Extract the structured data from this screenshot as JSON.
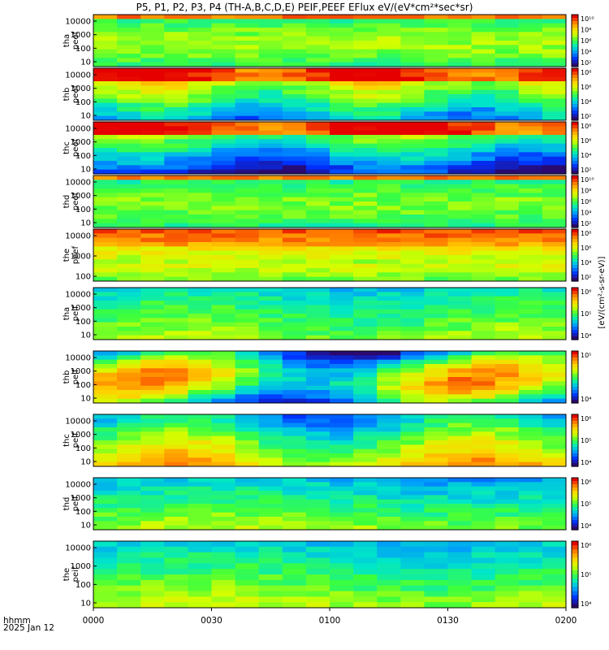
{
  "title": "P5, P1, P2, P3, P4 (TH-A,B,C,D,E) PEIF,PEEF EFlux eV/(eV*cm²*sec*sr)",
  "footer": {
    "line1": "hhmm",
    "line2": "2025 Jan 12"
  },
  "colorbar_units_label": "[eV/(cm²-s-sr-eV)]",
  "chart_data": {
    "type": "heatmap",
    "x_ticks": [
      "0000",
      "0030",
      "0100",
      "0130",
      "0200"
    ],
    "x_range_minutes": [
      0,
      120
    ],
    "panels": [
      {
        "probe": "tha",
        "product": "peef",
        "ylabel": [
          "tha",
          "peef"
        ],
        "yscale": "log",
        "ytick_labels": [
          "10",
          "100",
          "1000",
          "10000"
        ],
        "colorbar_ticks": [
          "10²",
          "10⁴",
          "10⁶",
          "10⁸",
          "10¹⁰"
        ]
      },
      {
        "probe": "thb",
        "product": "peef",
        "ylabel": [
          "thb",
          "peef"
        ],
        "yscale": "log",
        "ytick_labels": [
          "10",
          "100",
          "1000",
          "10000"
        ],
        "colorbar_ticks": [
          "10²",
          "10⁴",
          "10⁶",
          "10⁸"
        ]
      },
      {
        "probe": "thc",
        "product": "peef",
        "ylabel": [
          "thc",
          "peef"
        ],
        "yscale": "log",
        "ytick_labels": [
          "10",
          "100",
          "1000",
          "10000"
        ],
        "colorbar_ticks": [
          "10²",
          "10⁴",
          "10⁶",
          "10⁸"
        ]
      },
      {
        "probe": "thd",
        "product": "peef",
        "ylabel": [
          "thd",
          "peef"
        ],
        "yscale": "log",
        "ytick_labels": [
          "10",
          "100",
          "1000",
          "10000"
        ],
        "colorbar_ticks": [
          "10²",
          "10⁴",
          "10⁶",
          "10⁸",
          "10¹⁰"
        ]
      },
      {
        "probe": "the",
        "product": "peef",
        "ylabel": [
          "the",
          "peef"
        ],
        "yscale": "log",
        "ytick_labels": [
          "100",
          "1000",
          "10000"
        ],
        "colorbar_ticks": [
          "10²",
          "10⁴",
          "10⁶",
          "10⁸"
        ]
      },
      {
        "probe": "tha",
        "product": "peif",
        "ylabel": [
          "tha",
          "peif"
        ],
        "yscale": "log",
        "ytick_labels": [
          "10",
          "100",
          "1000",
          "10000"
        ],
        "colorbar_ticks": [
          "10⁴",
          "10⁵",
          "10⁶"
        ]
      },
      {
        "probe": "thb",
        "product": "peif",
        "ylabel": [
          "thb",
          "peif"
        ],
        "yscale": "log",
        "ytick_labels": [
          "10",
          "100",
          "1000",
          "10000"
        ],
        "colorbar_ticks": [
          "10⁴",
          "10⁵"
        ]
      },
      {
        "probe": "thc",
        "product": "peif",
        "ylabel": [
          "thc",
          "peif"
        ],
        "yscale": "log",
        "ytick_labels": [
          "10",
          "100",
          "1000",
          "10000"
        ],
        "colorbar_ticks": [
          "10⁴",
          "10⁵",
          "10⁶"
        ]
      },
      {
        "probe": "thd",
        "product": "peif",
        "ylabel": [
          "thd",
          "peif"
        ],
        "yscale": "log",
        "ytick_labels": [
          "10",
          "100",
          "1000",
          "10000"
        ],
        "colorbar_ticks": [
          "10⁴",
          "10⁵",
          "10⁶"
        ]
      },
      {
        "probe": "the",
        "product": "peif",
        "ylabel": [
          "the",
          "peif"
        ],
        "yscale": "log",
        "ytick_labels": [
          "10",
          "100",
          "1000",
          "10000"
        ],
        "colorbar_ticks": [
          "10⁴",
          "10⁵",
          "10⁶"
        ]
      }
    ],
    "colormap": [
      "#2a0a6e",
      "#0030ff",
      "#0096ff",
      "#00e6c8",
      "#3cff3c",
      "#d2ff00",
      "#ffd200",
      "#ff7800",
      "#e60000"
    ]
  }
}
